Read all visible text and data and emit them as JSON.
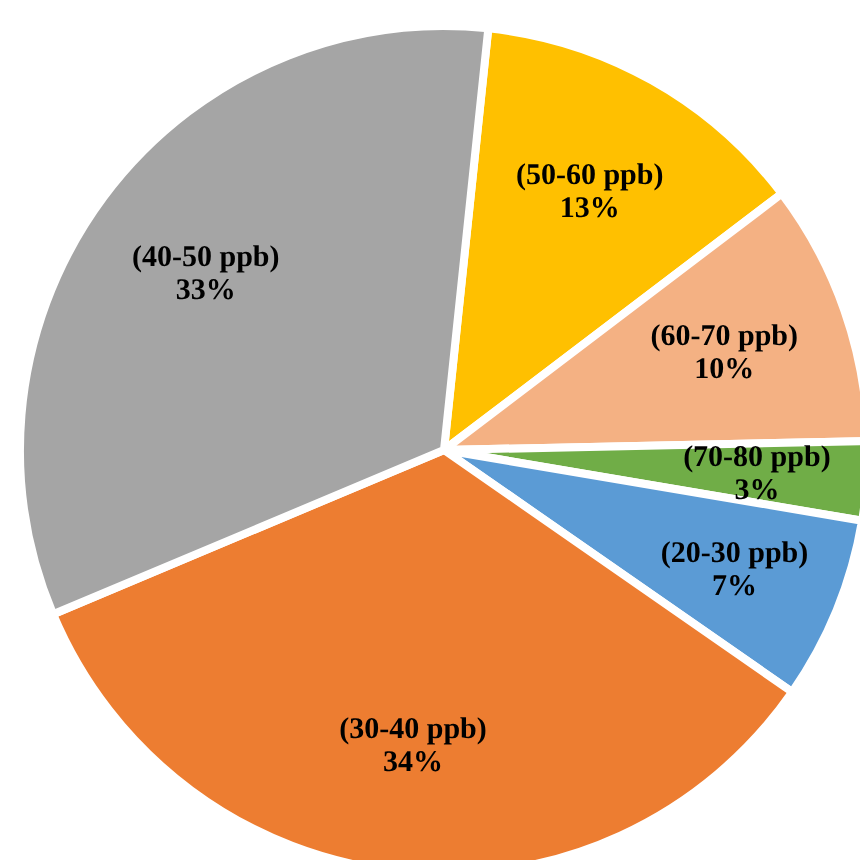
{
  "chart_data": {
    "type": "pie",
    "categories": [
      "(50-60 ppb)",
      "(60-70 ppb)",
      "(70-80 ppb)",
      "(20-30 ppb)",
      "(30-40 ppb)",
      "(40-50 ppb)"
    ],
    "values": [
      13,
      10,
      3,
      7,
      34,
      33
    ],
    "value_labels": [
      "13%",
      "10%",
      "3%",
      "7%",
      "34%",
      "33%"
    ],
    "colors": [
      "#ffc000",
      "#f4b183",
      "#70ad47",
      "#5b9bd5",
      "#ed7d31",
      "#a5a5a5"
    ]
  }
}
